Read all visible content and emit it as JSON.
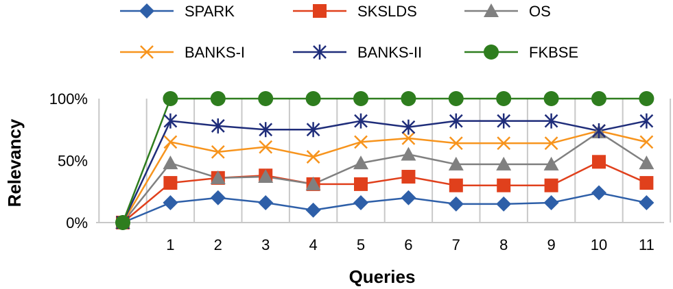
{
  "chart_data": {
    "type": "line",
    "title": "",
    "xlabel": "Queries",
    "ylabel": "Relevancy",
    "x": [
      "",
      "1",
      "2",
      "3",
      "4",
      "5",
      "6",
      "7",
      "8",
      "9",
      "10",
      "11"
    ],
    "ylim": [
      0,
      100
    ],
    "yticks": [
      "0%",
      "50%",
      "100%"
    ],
    "ytick_values": [
      0,
      50,
      100
    ],
    "grid": "vertical",
    "legend_position": "top",
    "series": [
      {
        "name": "SPARK",
        "color": "#2e5fa8",
        "marker": "diamond",
        "values": [
          0,
          16,
          20,
          16,
          10,
          16,
          20,
          15,
          15,
          16,
          24,
          16
        ]
      },
      {
        "name": "SKSLDS",
        "color": "#e0401c",
        "marker": "square",
        "values": [
          0,
          32,
          36,
          38,
          31,
          31,
          37,
          30,
          30,
          30,
          49,
          32
        ]
      },
      {
        "name": "OS",
        "color": "#808080",
        "marker": "triangle",
        "values": [
          0,
          48,
          36,
          37,
          31,
          48,
          55,
          47,
          47,
          47,
          73,
          48
        ]
      },
      {
        "name": "BANKS-I",
        "color": "#f7941d",
        "marker": "x",
        "values": [
          0,
          65,
          57,
          61,
          53,
          65,
          68,
          64,
          64,
          64,
          74,
          65
        ]
      },
      {
        "name": "BANKS-II",
        "color": "#1f2d7a",
        "marker": "asterisk",
        "values": [
          0,
          82,
          78,
          75,
          75,
          82,
          77,
          82,
          82,
          82,
          74,
          82
        ]
      },
      {
        "name": "FKBSE",
        "color": "#2e7d1e",
        "marker": "circle",
        "values": [
          0,
          100,
          100,
          100,
          100,
          100,
          100,
          100,
          100,
          100,
          100,
          100
        ]
      }
    ]
  }
}
